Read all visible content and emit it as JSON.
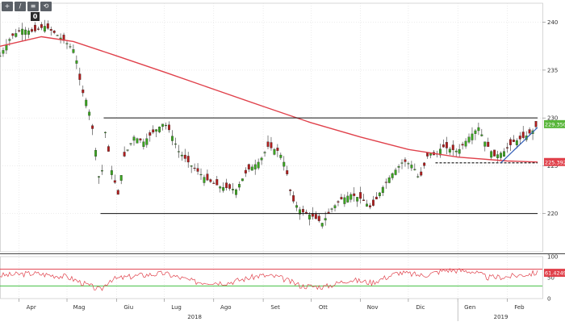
{
  "toolbar": {
    "buttons": [
      {
        "icon": "crosshair-icon",
        "glyph": "+"
      },
      {
        "icon": "draw-line-icon",
        "glyph": "/"
      },
      {
        "icon": "zoom-icon",
        "glyph": "≡"
      },
      {
        "icon": "undo-icon",
        "glyph": "⟲"
      }
    ],
    "badge": "0"
  },
  "colors": {
    "candle_up": "#3aa51f",
    "candle_down": "#b11d1d",
    "moving_average": "#e0414b",
    "levels": "#111111",
    "trendline": "#2e5bb7",
    "rsi_line": "#e0414b",
    "rsi_upper": "#e0414b",
    "rsi_lower": "#43c043",
    "last_price_tag": "#58b63a",
    "ma_price_tag": "#e0414b",
    "grid": "#d9d9d9"
  },
  "chart_data": [
    {
      "type": "candlestick",
      "y_ticks": [
        "240",
        "235",
        "230",
        "225",
        "220"
      ],
      "ylim": [
        216,
        242
      ],
      "x_labels": [
        "Apr",
        "Mag",
        "Giu",
        "Lug",
        "Ago",
        "Set",
        "Ott",
        "Nov",
        "Dic",
        "Gen",
        "Feb"
      ],
      "year_labels": [
        "2018",
        "2019"
      ],
      "price_tags": {
        "last_price": "229.3500",
        "moving_average": "225.3926"
      },
      "series": [
        {
          "kind": "price",
          "anchors": [
            [
              "Mar-20",
              236.5
            ],
            [
              "Mar-27",
              238.5
            ],
            [
              "Apr-03",
              239.3
            ],
            [
              "Apr-10",
              239.0
            ],
            [
              "Apr-17",
              239.6
            ],
            [
              "Apr-24",
              238.8
            ],
            [
              "May-01",
              237.8
            ],
            [
              "May-06",
              237.0
            ],
            [
              "May-10",
              233.0
            ],
            [
              "May-14",
              231.5
            ],
            [
              "May-18",
              228.0
            ],
            [
              "May-22",
              222.5
            ],
            [
              "May-25",
              228.5
            ],
            [
              "May-29",
              224.5
            ],
            [
              "Jun-02",
              222.0
            ],
            [
              "Jun-06",
              226.0
            ],
            [
              "Jun-12",
              228.0
            ],
            [
              "Jun-18",
              227.5
            ],
            [
              "Jun-24",
              228.5
            ],
            [
              "Jul-01",
              229.5
            ],
            [
              "Jul-05",
              228.5
            ],
            [
              "Jul-10",
              226.5
            ],
            [
              "Jul-18",
              225.0
            ],
            [
              "Jul-28",
              223.5
            ],
            [
              "Aug-05",
              222.8
            ],
            [
              "Aug-15",
              222.5
            ],
            [
              "Aug-22",
              224.5
            ],
            [
              "Aug-30",
              225.5
            ],
            [
              "Sep-04",
              227.0
            ],
            [
              "Sep-11",
              226.5
            ],
            [
              "Sep-15",
              225.0
            ],
            [
              "Sep-19",
              221.5
            ],
            [
              "Sep-25",
              220.2
            ],
            [
              "Oct-01",
              219.8
            ],
            [
              "Oct-08",
              219.0
            ],
            [
              "Oct-14",
              220.5
            ],
            [
              "Oct-20",
              221.5
            ],
            [
              "Oct-26",
              222.0
            ],
            [
              "Nov-02",
              221.5
            ],
            [
              "Nov-08",
              220.5
            ],
            [
              "Nov-14",
              222.5
            ],
            [
              "Nov-20",
              224.0
            ],
            [
              "Nov-28",
              225.5
            ],
            [
              "Dec-04",
              225.0
            ],
            [
              "Dec-08",
              223.5
            ],
            [
              "Dec-14",
              226.5
            ],
            [
              "Dec-18",
              226.0
            ],
            [
              "Dec-22",
              227.0
            ],
            [
              "Jan-01",
              226.5
            ],
            [
              "Jan-08",
              228.0
            ],
            [
              "Jan-14",
              229.0
            ],
            [
              "Jan-18",
              227.5
            ],
            [
              "Jan-24",
              226.0
            ],
            [
              "Jan-30",
              226.5
            ],
            [
              "Feb-05",
              227.5
            ],
            [
              "Feb-12",
              228.0
            ],
            [
              "Feb-18",
              228.8
            ],
            [
              "Feb-20",
              229.35
            ]
          ]
        },
        {
          "kind": "moving_average",
          "points": [
            [
              "Mar-20",
              237.5
            ],
            [
              "Apr-15",
              238.5
            ],
            [
              "May-05",
              238.0
            ],
            [
              "Jun-01",
              236.5
            ],
            [
              "Jul-01",
              234.8
            ],
            [
              "Aug-01",
              233.0
            ],
            [
              "Sep-01",
              231.2
            ],
            [
              "Oct-01",
              229.5
            ],
            [
              "Nov-01",
              228.0
            ],
            [
              "Dec-01",
              226.7
            ],
            [
              "Jan-01",
              225.9
            ],
            [
              "Feb-01",
              225.5
            ],
            [
              "Feb-20",
              225.39
            ]
          ]
        }
      ],
      "annotations": [
        {
          "kind": "level",
          "value": 230.0,
          "from": "May-24",
          "to": "Feb-20"
        },
        {
          "kind": "level",
          "value": 220.0,
          "from": "May-22",
          "to": "Feb-20"
        },
        {
          "kind": "dashed_level",
          "value": 225.3,
          "from": "Dec-18",
          "to": "Feb-20"
        },
        {
          "kind": "trendline",
          "from": [
            "Jan-28",
            225.3
          ],
          "to": [
            "Feb-20",
            229.0
          ]
        }
      ]
    },
    {
      "type": "line",
      "indicator": "rsi",
      "y_ticks": [
        "100",
        "50",
        "0"
      ],
      "ylim": [
        0,
        100
      ],
      "upper_band": 70,
      "lower_band": 30,
      "last_value_tag": "61.4249",
      "anchors": [
        [
          "Mar-20",
          55
        ],
        [
          "Apr-10",
          60
        ],
        [
          "May-01",
          52
        ],
        [
          "May-12",
          35
        ],
        [
          "May-22",
          20
        ],
        [
          "May-28",
          45
        ],
        [
          "Jun-15",
          55
        ],
        [
          "Jul-01",
          60
        ],
        [
          "Jul-20",
          40
        ],
        [
          "Aug-10",
          38
        ],
        [
          "Aug-30",
          55
        ],
        [
          "Sep-10",
          52
        ],
        [
          "Sep-25",
          30
        ],
        [
          "Oct-10",
          28
        ],
        [
          "Oct-25",
          45
        ],
        [
          "Nov-08",
          38
        ],
        [
          "Nov-25",
          62
        ],
        [
          "Dec-10",
          55
        ],
        [
          "Dec-25",
          68
        ],
        [
          "Jan-10",
          65
        ],
        [
          "Jan-20",
          50
        ],
        [
          "Feb-01",
          52
        ],
        [
          "Feb-20",
          61.4
        ]
      ]
    }
  ]
}
